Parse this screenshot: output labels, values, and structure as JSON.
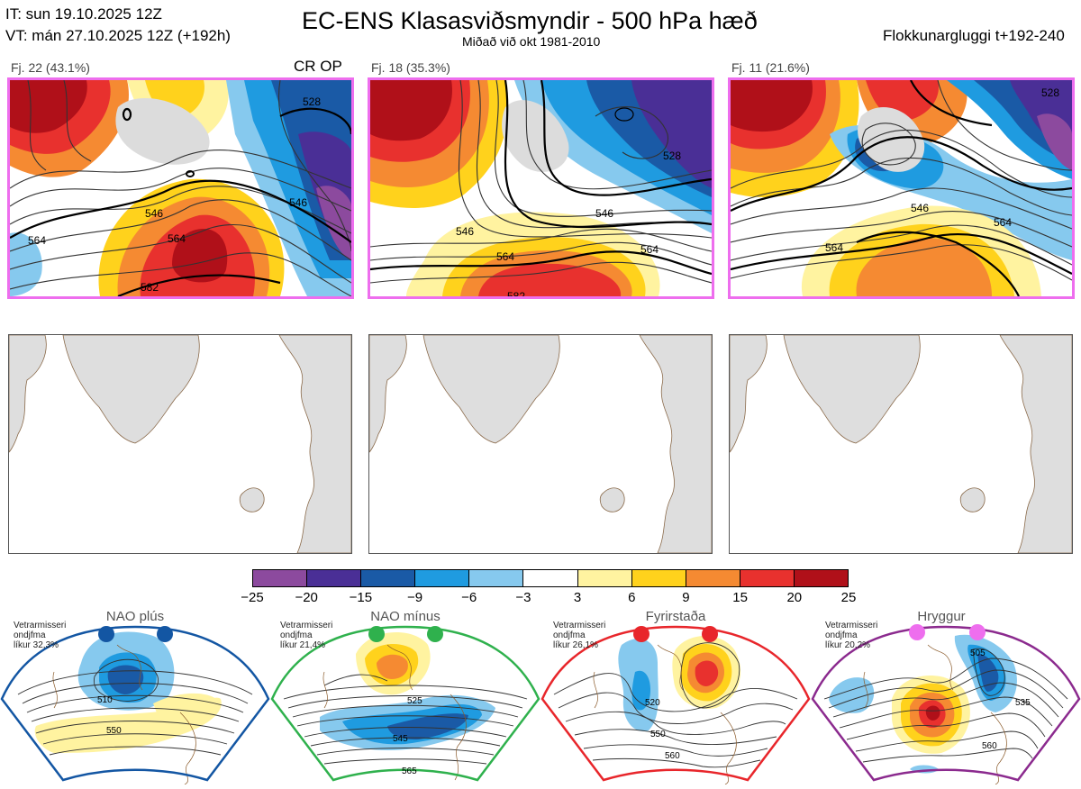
{
  "header": {
    "it_line": "IT: sun 19.10.2025 12Z",
    "vt_line": "VT: mán 27.10.2025 12Z  (+192h)",
    "title": "EC-ENS Klasasviðsmyndir - 500 hPa hæð",
    "subtitle": "Miðað við okt 1981-2010",
    "window": "Flokkunargluggi t+192-240"
  },
  "clusters": [
    {
      "label": "Fj. 22 (43.1%)",
      "tag": "CR OP",
      "contours": [
        "546",
        "564",
        "582",
        "528",
        "546",
        "564"
      ]
    },
    {
      "label": "Fj. 18 (35.3%)",
      "tag": "",
      "contours": [
        "546",
        "546",
        "564",
        "564",
        "528",
        "582"
      ]
    },
    {
      "label": "Fj. 11 (21.6%)",
      "tag": "",
      "contours": [
        "546",
        "564",
        "564",
        "528"
      ]
    }
  ],
  "colorbar": {
    "ticks": [
      "−25",
      "−20",
      "−15",
      "−9",
      "−6",
      "−3",
      "3",
      "6",
      "9",
      "15",
      "20",
      "25"
    ],
    "colors": [
      "#8c4a9e",
      "#4a2f96",
      "#1a5aa6",
      "#1f9be0",
      "#86c9ee",
      "#ffffff",
      "#fff3a0",
      "#ffd21c",
      "#f58a32",
      "#e8312e",
      "#b01019"
    ]
  },
  "regimes": [
    {
      "title": "NAO plús",
      "info": "Vetrarmisseri\nondjfma\nlíkur 32,3%",
      "dot_color": "#1356a3",
      "frame_color": "#1356a3",
      "contours": [
        "510",
        "550"
      ]
    },
    {
      "title": "NAO mínus",
      "info": "Vetrarmisseri\nondjfma\nlíkur 21,4%",
      "dot_color": "#2fb14d",
      "frame_color": "#2fb14d",
      "contours": [
        "525",
        "545",
        "565"
      ]
    },
    {
      "title": "Fyrirstaða",
      "info": "Vetrarmisseri\nondjfma\nlíkur 26,1%",
      "dot_color": "#e8262b",
      "frame_color": "#e8262b",
      "contours": [
        "520",
        "550",
        "560"
      ]
    },
    {
      "title": "Hryggur",
      "info": "Vetrarmisseri\nondjfma\nlíkur 20,2%",
      "dot_color": "#ee6eee",
      "frame_color": "#8b2a8e",
      "contours": [
        "505",
        "535",
        "560"
      ]
    }
  ]
}
